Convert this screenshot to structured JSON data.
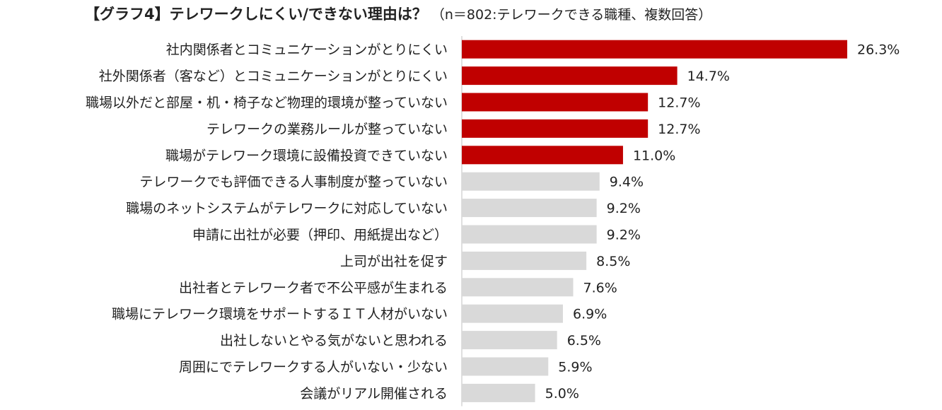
{
  "title": "【グラフ4】テレワークしにくい/できない理由は？",
  "subtitle": "（n＝802:テレワークできる職種、複数回答）",
  "colors": {
    "highlight": "#c00000",
    "normal": "#d9d9d9",
    "axis": "#bfbfbf"
  },
  "chart_data": {
    "type": "bar",
    "orientation": "horizontal",
    "categories": [
      "社内関係者とコミュニケーションがとりにくい",
      "社外関係者（客など）とコミュニケーションがとりにくい",
      "職場以外だと部屋・机・椅子など物理的環境が整っていない",
      "テレワークの業務ルールが整っていない",
      "職場がテレワーク環境に設備投資できていない",
      "テレワークでも評価できる人事制度が整っていない",
      "職場のネットシステムがテレワークに対応していない",
      "申請に出社が必要（押印、用紙提出など）",
      "上司が出社を促す",
      "出社者とテレワーク者で不公平感が生まれる",
      "職場にテレワーク環境をサポートするＩＴ人材がいない",
      "出社しないとやる気がないと思われる",
      "周囲にでテレワークする人がいない・少ない",
      "会議がリアル開催される"
    ],
    "values": [
      26.3,
      14.7,
      12.7,
      12.7,
      11.0,
      9.4,
      9.2,
      9.2,
      8.5,
      7.6,
      6.9,
      6.5,
      5.9,
      5.0
    ],
    "data_labels": [
      "26.3%",
      "14.7%",
      "12.7%",
      "12.7%",
      "11.0%",
      "9.4%",
      "9.2%",
      "9.2%",
      "8.5%",
      "7.6%",
      "6.9%",
      "6.5%",
      "5.9%",
      "5.0%"
    ],
    "highlighted_count": 5,
    "xlim": [
      0,
      26.3
    ],
    "grid": false,
    "legend": "none"
  }
}
